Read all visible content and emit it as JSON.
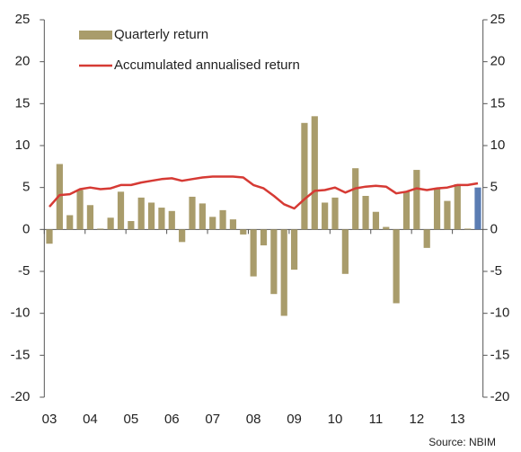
{
  "chart_data": {
    "type": "bar-line",
    "categories": [
      "03",
      null,
      null,
      null,
      "04",
      null,
      null,
      null,
      "05",
      null,
      null,
      null,
      "06",
      null,
      null,
      null,
      "07",
      null,
      null,
      null,
      "08",
      null,
      null,
      null,
      "09",
      null,
      null,
      null,
      "10",
      null,
      null,
      null,
      "11",
      null,
      null,
      null,
      "12",
      null,
      null,
      null,
      "13",
      null,
      null
    ],
    "series": [
      {
        "name": "Quarterly return",
        "type": "bar",
        "color": "#a99c6b",
        "bar_colors": [
          "#a99c6b",
          "#a99c6b",
          "#a99c6b",
          "#a99c6b",
          "#a99c6b",
          "#a99c6b",
          "#a99c6b",
          "#a99c6b",
          "#a99c6b",
          "#a99c6b",
          "#a99c6b",
          "#a99c6b",
          "#a99c6b",
          "#a99c6b",
          "#a99c6b",
          "#a99c6b",
          "#a99c6b",
          "#a99c6b",
          "#a99c6b",
          "#a99c6b",
          "#a99c6b",
          "#a99c6b",
          "#a99c6b",
          "#a99c6b",
          "#a99c6b",
          "#a99c6b",
          "#a99c6b",
          "#a99c6b",
          "#a99c6b",
          "#a99c6b",
          "#a99c6b",
          "#a99c6b",
          "#a99c6b",
          "#a99c6b",
          "#a99c6b",
          "#a99c6b",
          "#a99c6b",
          "#a99c6b",
          "#a99c6b",
          "#a99c6b",
          "#a99c6b",
          "#a99c6b",
          "#5b7db3"
        ],
        "values": [
          -1.7,
          7.8,
          1.7,
          4.7,
          2.9,
          0.1,
          1.4,
          4.5,
          1.0,
          3.8,
          3.2,
          2.6,
          2.2,
          -1.5,
          3.9,
          3.1,
          1.5,
          2.3,
          1.2,
          -0.6,
          -5.6,
          -1.9,
          -7.7,
          -10.3,
          -4.8,
          12.7,
          13.5,
          3.2,
          3.8,
          -5.3,
          7.3,
          4.0,
          2.1,
          0.3,
          -8.8,
          4.5,
          7.1,
          -2.2,
          4.8,
          3.4,
          5.4,
          0.1,
          5.0
        ]
      },
      {
        "name": "Accumulated annualised return",
        "type": "line",
        "color": "#d63a34",
        "axis": "y2",
        "values": [
          2.7,
          4.1,
          4.2,
          4.8,
          5.0,
          4.8,
          4.9,
          5.3,
          5.3,
          5.6,
          5.8,
          6.0,
          6.1,
          5.8,
          6.0,
          6.2,
          6.3,
          6.3,
          6.3,
          6.2,
          5.3,
          4.9,
          4.0,
          3.0,
          2.5,
          3.6,
          4.6,
          4.7,
          5.0,
          4.4,
          4.9,
          5.1,
          5.2,
          5.1,
          4.3,
          4.5,
          4.9,
          4.7,
          4.9,
          5.0,
          5.3,
          5.3,
          5.5
        ]
      }
    ],
    "ylim": [
      -20,
      25
    ],
    "yticks": [
      -20,
      -15,
      -10,
      -5,
      0,
      5,
      10,
      15,
      20,
      25
    ],
    "y2lim": [
      -20,
      25
    ],
    "y2ticks": [
      -20,
      -15,
      -10,
      -5,
      0,
      5,
      10,
      15,
      20,
      25
    ],
    "source": "Source: NBIM",
    "legend": "top-left"
  }
}
